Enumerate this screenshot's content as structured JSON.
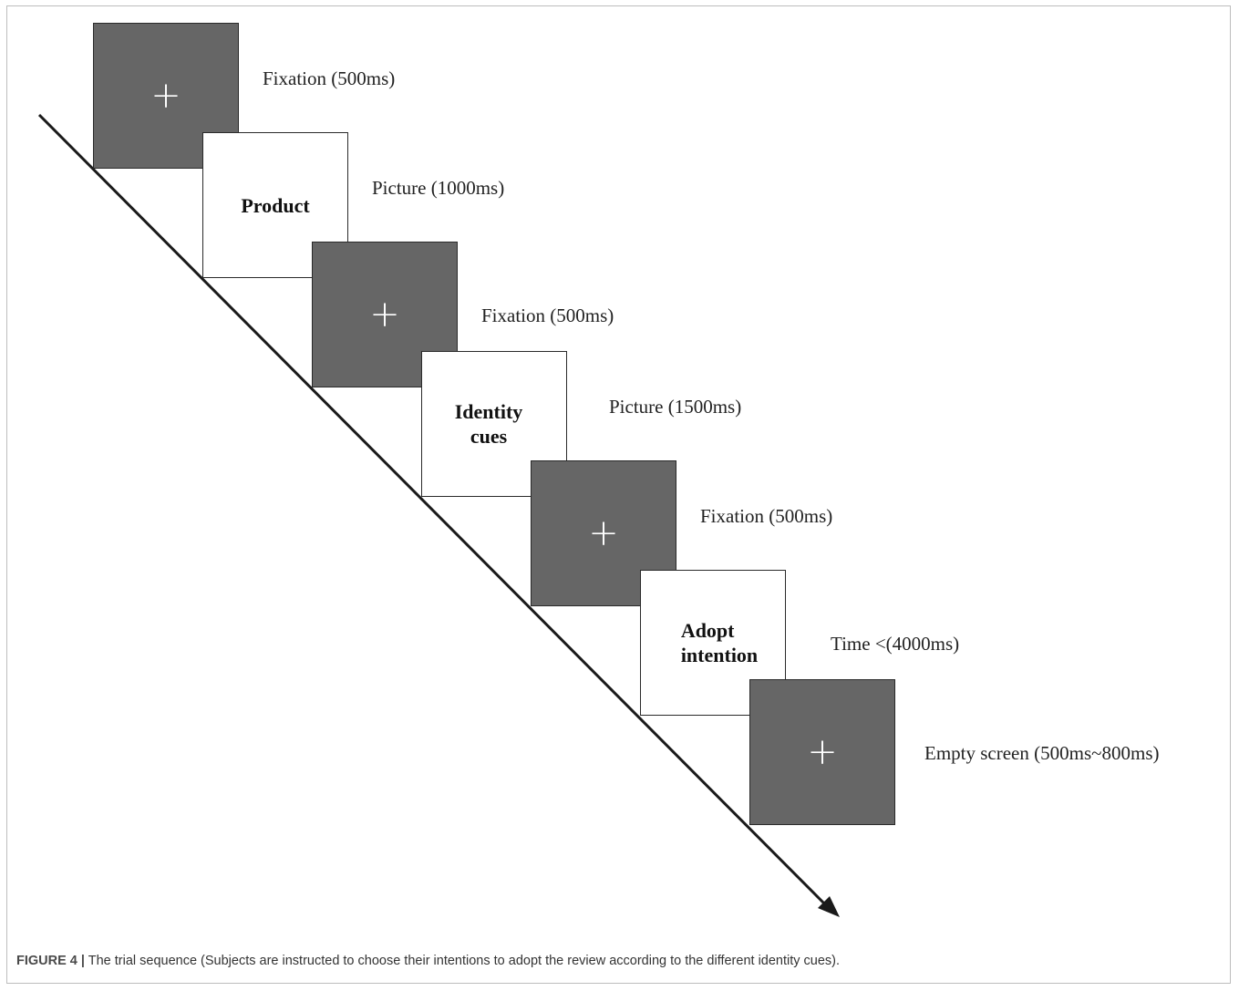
{
  "steps": [
    {
      "screen": "+",
      "label": "Fixation (500ms)"
    },
    {
      "screen": "Product",
      "label": "Picture (1000ms)"
    },
    {
      "screen": "+",
      "label": "Fixation (500ms)"
    },
    {
      "screen_lines": [
        "Identity",
        "cues"
      ],
      "label": "Picture (1500ms)"
    },
    {
      "screen": "+",
      "label": "Fixation (500ms)"
    },
    {
      "screen_lines": [
        "Adopt",
        "intention"
      ],
      "label": "Time <(4000ms)"
    },
    {
      "screen": "+",
      "label": "Empty screen (500ms~800ms)"
    }
  ],
  "caption": {
    "prefix": "FIGURE 4 |",
    "text": " The trial sequence (Subjects are instructed to choose their intentions to adopt the review according to the different identity cues)."
  },
  "colors": {
    "dark_screen": "#666666",
    "light_screen": "#ffffff",
    "line": "#1a1a1a"
  }
}
